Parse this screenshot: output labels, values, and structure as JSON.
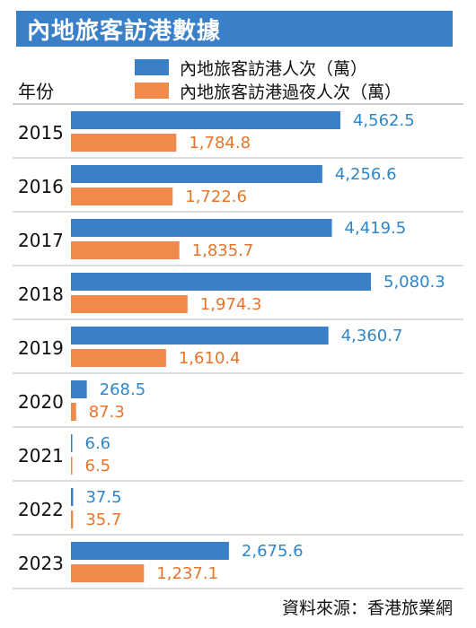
{
  "title": "內地旅客訪港數據",
  "footer": "資料來源：香港旅業網",
  "chart_data": {
    "type": "bar",
    "orientation": "horizontal",
    "y_header": "年份",
    "categories": [
      "2015",
      "2016",
      "2017",
      "2018",
      "2019",
      "2020",
      "2021",
      "2022",
      "2023"
    ],
    "series": [
      {
        "name": "內地旅客訪港人次（萬）",
        "color": "#3a80c8",
        "values": [
          4562.5,
          4256.6,
          4419.5,
          5080.3,
          4360.7,
          268.5,
          6.6,
          37.5,
          2675.6
        ],
        "labels": [
          "4,562.5",
          "4,256.6",
          "4,419.5",
          "5,080.3",
          "4,360.7",
          "268.5",
          "6.6",
          "37.5",
          "2,675.6"
        ]
      },
      {
        "name": "內地旅客訪港過夜人次（萬）",
        "color": "#f08a4b",
        "values": [
          1784.8,
          1722.6,
          1835.7,
          1974.3,
          1610.4,
          87.3,
          6.5,
          35.7,
          1237.1
        ],
        "labels": [
          "1,784.8",
          "1,722.6",
          "1,835.7",
          "1,974.3",
          "1,610.4",
          "87.3",
          "6.5",
          "35.7",
          "1,237.1"
        ]
      }
    ],
    "label_colors": [
      "#2e86c8",
      "#e8742a"
    ],
    "legend_position": "top"
  }
}
